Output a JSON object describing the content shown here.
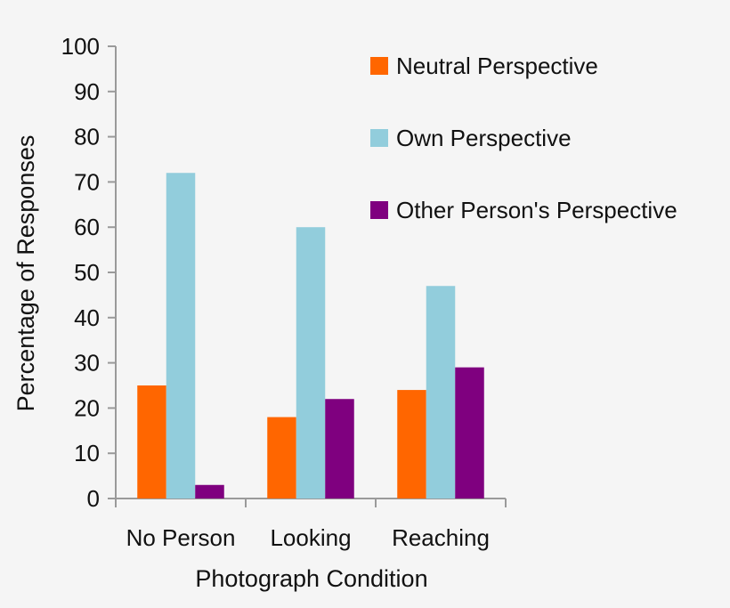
{
  "chart_data": {
    "type": "bar",
    "title": "",
    "xlabel": "Photograph Condition",
    "ylabel": "Percentage of Responses",
    "ylim": [
      0,
      100
    ],
    "yticks": [
      0,
      10,
      20,
      30,
      40,
      50,
      60,
      70,
      80,
      90,
      100
    ],
    "categories": [
      "No Person",
      "Looking",
      "Reaching"
    ],
    "series": [
      {
        "name": "Neutral Perspective",
        "color": "#ff6600",
        "values": [
          25,
          18,
          24
        ]
      },
      {
        "name": "Own Perspective",
        "color": "#92cddc",
        "values": [
          72,
          60,
          47
        ]
      },
      {
        "name": "Other Person's Perspective",
        "color": "#7f007f",
        "values": [
          3,
          22,
          29
        ]
      }
    ],
    "legend_position": "top-right",
    "grid": false
  }
}
